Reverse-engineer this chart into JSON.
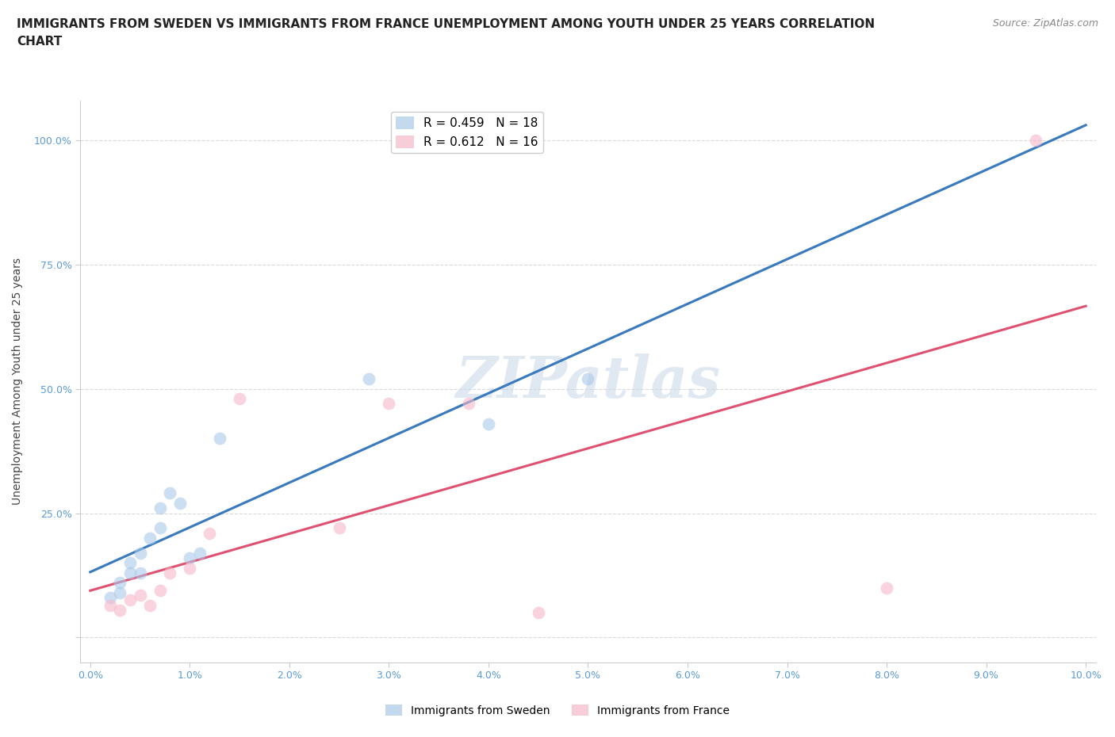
{
  "title": "IMMIGRANTS FROM SWEDEN VS IMMIGRANTS FROM FRANCE UNEMPLOYMENT AMONG YOUTH UNDER 25 YEARS CORRELATION\nCHART",
  "source": "Source: ZipAtlas.com",
  "ylabel": "Unemployment Among Youth under 25 years",
  "xlim": [
    -0.001,
    0.101
  ],
  "ylim": [
    -0.05,
    1.08
  ],
  "xticks": [
    0.0,
    0.01,
    0.02,
    0.03,
    0.04,
    0.05,
    0.06,
    0.07,
    0.08,
    0.09,
    0.1
  ],
  "xticklabels": [
    "0.0%",
    "1.0%",
    "2.0%",
    "3.0%",
    "4.0%",
    "5.0%",
    "6.0%",
    "7.0%",
    "8.0%",
    "9.0%",
    "10.0%"
  ],
  "yticks": [
    0.0,
    0.25,
    0.5,
    0.75,
    1.0
  ],
  "yticklabels": [
    "",
    "25.0%",
    "50.0%",
    "75.0%",
    "100.0%"
  ],
  "sweden_color": "#aac9e8",
  "france_color": "#f5b8c8",
  "sweden_R": 0.459,
  "sweden_N": 18,
  "france_R": 0.612,
  "france_N": 16,
  "sweden_x": [
    0.002,
    0.003,
    0.003,
    0.004,
    0.004,
    0.005,
    0.005,
    0.006,
    0.007,
    0.007,
    0.008,
    0.009,
    0.01,
    0.011,
    0.013,
    0.028,
    0.04,
    0.05
  ],
  "sweden_y": [
    0.08,
    0.09,
    0.11,
    0.13,
    0.15,
    0.13,
    0.17,
    0.2,
    0.22,
    0.26,
    0.29,
    0.27,
    0.16,
    0.17,
    0.4,
    0.52,
    0.43,
    0.52
  ],
  "france_x": [
    0.002,
    0.003,
    0.004,
    0.005,
    0.006,
    0.007,
    0.008,
    0.01,
    0.012,
    0.015,
    0.025,
    0.03,
    0.038,
    0.045,
    0.08,
    0.095
  ],
  "france_y": [
    0.065,
    0.055,
    0.075,
    0.085,
    0.065,
    0.095,
    0.13,
    0.14,
    0.21,
    0.48,
    0.22,
    0.47,
    0.47,
    0.05,
    0.1,
    1.0
  ],
  "background_color": "#ffffff",
  "grid_color": "#d0d0d0",
  "watermark_text": "ZIPatlas",
  "title_fontsize": 11,
  "axis_label_fontsize": 10,
  "tick_fontsize": 9,
  "legend_fontsize": 10,
  "source_fontsize": 9,
  "marker_size": 130,
  "sweden_line_color": "#3a7abf",
  "sweden_line_style": "-",
  "france_line_color": "#e05070",
  "france_line_style": "-",
  "dashed_line_color": "#aaaaaa",
  "dashed_line_style": "--",
  "tick_color": "#5b9bd5"
}
